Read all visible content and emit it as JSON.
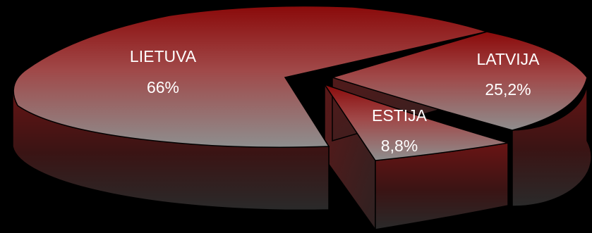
{
  "chart_data": {
    "type": "pie",
    "style": "3d-exploded",
    "slices": [
      {
        "label": "LIETUVA",
        "value": 66,
        "value_label": "66%",
        "color": "#7a1010"
      },
      {
        "label": "LATVIJA",
        "value": 25.2,
        "value_label": "25,2%",
        "color": "#7a1010"
      },
      {
        "label": "ESTIJA",
        "value": 8.8,
        "value_label": "8,8%",
        "color": "#7a1010"
      }
    ],
    "legend": "none",
    "background": "#000000"
  }
}
